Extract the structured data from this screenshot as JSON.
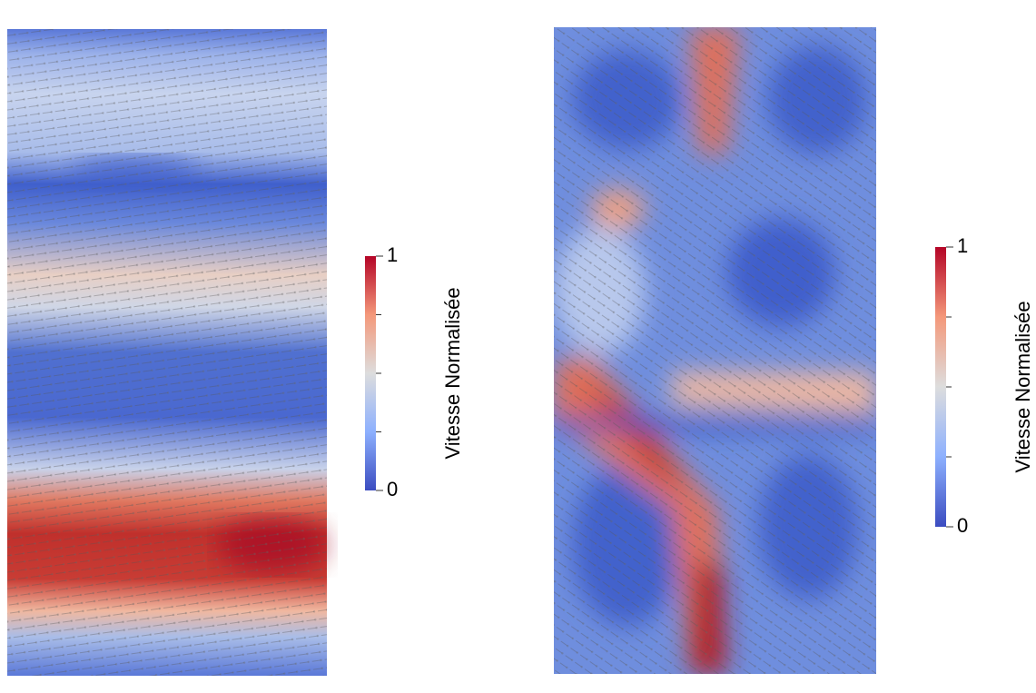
{
  "panels": [
    {
      "colorbar": {
        "label": "Vitesse Normalisée",
        "lim": [
          0,
          1
        ],
        "ticks": [
          0,
          1
        ],
        "minor_ticks": [
          0.25,
          0.5,
          0.75
        ]
      }
    },
    {
      "colorbar": {
        "label": "Vitesse Normalisée",
        "lim": [
          0,
          1
        ],
        "ticks": [
          0,
          1
        ],
        "minor_ticks": [
          0.25,
          0.5,
          0.75
        ]
      }
    }
  ]
}
